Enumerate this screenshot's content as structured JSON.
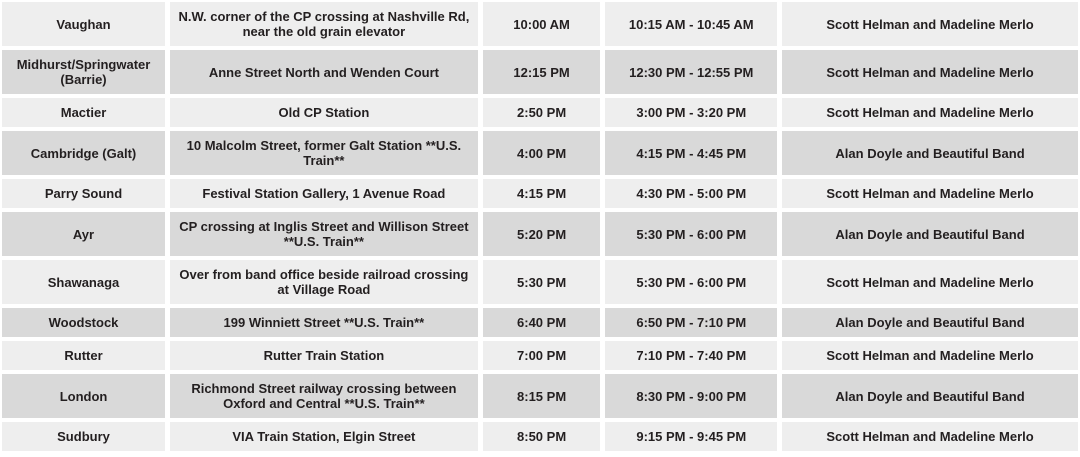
{
  "colors": {
    "row_light": "#eeeeee",
    "row_dark": "#d9d9d9",
    "text": "#231f20",
    "gap": "#ffffff"
  },
  "table": {
    "rows": [
      {
        "location": "Vaughan",
        "venue": "N.W. corner of the CP crossing at Nashville Rd, near the old grain elevator",
        "arrival": "10:00 AM",
        "show_time": "10:15 AM - 10:45 AM",
        "performers": "Scott Helman and Madeline Merlo"
      },
      {
        "location": "Midhurst/Springwater (Barrie)",
        "venue": "Anne Street North and Wenden Court",
        "arrival": "12:15 PM",
        "show_time": "12:30 PM - 12:55 PM",
        "performers": "Scott Helman and Madeline Merlo"
      },
      {
        "location": "Mactier",
        "venue": "Old CP Station",
        "arrival": "2:50 PM",
        "show_time": "3:00 PM - 3:20 PM",
        "performers": "Scott Helman and Madeline Merlo"
      },
      {
        "location": "Cambridge (Galt)",
        "venue": "10 Malcolm Street, former Galt Station **U.S. Train**",
        "arrival": "4:00 PM",
        "show_time": "4:15 PM - 4:45 PM",
        "performers": "Alan Doyle and Beautiful Band"
      },
      {
        "location": "Parry Sound",
        "venue": "Festival Station Gallery, 1 Avenue Road",
        "arrival": "4:15 PM",
        "show_time": "4:30 PM - 5:00 PM",
        "performers": "Scott Helman and Madeline Merlo"
      },
      {
        "location": "Ayr",
        "venue": "CP crossing at Inglis Street and Willison Street **U.S. Train**",
        "arrival": "5:20 PM",
        "show_time": "5:30 PM - 6:00 PM",
        "performers": "Alan Doyle and Beautiful Band"
      },
      {
        "location": "Shawanaga",
        "venue": "Over from band office beside railroad crossing at Village Road",
        "arrival": "5:30 PM",
        "show_time": "5:30 PM - 6:00 PM",
        "performers": "Scott Helman and Madeline Merlo"
      },
      {
        "location": "Woodstock",
        "venue": "199 Winniett Street **U.S. Train**",
        "arrival": "6:40 PM",
        "show_time": "6:50 PM - 7:10 PM",
        "performers": "Alan Doyle and Beautiful Band"
      },
      {
        "location": "Rutter",
        "venue": "Rutter Train Station",
        "arrival": "7:00 PM",
        "show_time": "7:10 PM - 7:40 PM",
        "performers": "Scott Helman and Madeline Merlo"
      },
      {
        "location": "London",
        "venue": "Richmond Street railway crossing between Oxford and Central **U.S. Train**",
        "arrival": "8:15 PM",
        "show_time": "8:30 PM - 9:00 PM",
        "performers": "Alan Doyle and Beautiful Band"
      },
      {
        "location": "Sudbury",
        "venue": "VIA Train Station, Elgin Street",
        "arrival": "8:50 PM",
        "show_time": "9:15 PM - 9:45 PM",
        "performers": "Scott Helman and Madeline Merlo"
      }
    ]
  }
}
